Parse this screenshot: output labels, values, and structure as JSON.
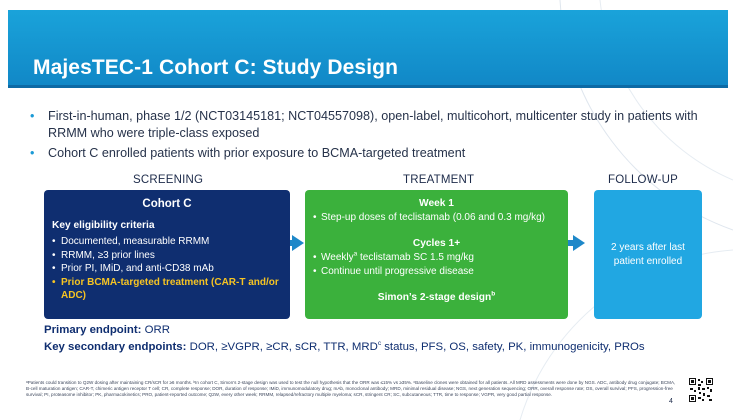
{
  "slide": {
    "title": "MajesTEC-1 Cohort C: Study Design",
    "page_number": "4",
    "colors": {
      "title_bar": "#1188c7",
      "screening": "#0f2e70",
      "treatment": "#3bb13c",
      "follow_up": "#21a7e2",
      "highlight": "#f6c423"
    }
  },
  "bullets": [
    "First-in-human, phase 1/2 (NCT03145181; NCT04557098), open-label, multicohort, multicenter study in patients with RRMM who were triple-class exposed",
    "Cohort C enrolled patients with prior exposure to BCMA-targeted treatment"
  ],
  "phases": {
    "screening": "SCREENING",
    "treatment": "TREATMENT",
    "follow_up": "FOLLOW-UP"
  },
  "screening_box": {
    "heading": "Cohort C",
    "subheading": "Key eligibility criteria",
    "items": [
      "Documented, measurable RRMM",
      "RRMM, ≥3 prior lines",
      "Prior PI, IMiD, and anti-CD38 mAb"
    ],
    "highlight_item": "Prior BCMA-targeted treatment (CAR-T and/or ADC)"
  },
  "treatment_box": {
    "week_heading": "Week 1",
    "week_item": "Step-up doses of teclistamab (0.06 and 0.3 mg/kg)",
    "cycles_heading": "Cycles 1+",
    "weekly_prefix": "Weekly",
    "weekly_sup": "a",
    "weekly_rest": " teclistamab SC 1.5 mg/kg",
    "continue_item": "Continue until progressive disease",
    "design_label": "Simon’s 2-stage design",
    "design_sup": "b"
  },
  "follow_up_box": {
    "text": "2 years after last patient enrolled"
  },
  "endpoints": {
    "primary_label": "Primary endpoint:",
    "primary_value": "ORR",
    "secondary_label": "Key secondary endpoints:",
    "secondary_value_a": "DOR, ≥VGPR, ≥CR, sCR, TTR, MRD",
    "secondary_sup": "c",
    "secondary_value_b": " status, PFS, OS, safety, PK, immunogenicity, PROs"
  },
  "footnote": "ᵃPatients could transition to Q2W dosing after maintaining CR/sCR for ≥6 months. ᵇIn cohort C, Simon’s 2-stage design was used to test the null hypothesis that the ORR was ≤15% vs ≥35%. ᶜBaseline clones were obtained for all patients. All MRD assessments were done by NGS. ADC, antibody drug conjugate; BCMA, B-cell maturation antigen; CAR-T, chimeric antigen receptor T cell; CR, complete response; DOR, duration of response; IMiD, immunomodulatory drug; mAb, monoclonal antibody; MRD, minimal residual disease; NGS, next generation sequencing; ORR, overall response rate; OS, overall survival; PFS, progression-free survival; PI, proteasome inhibitor; PK, pharmacokinetics; PRO, patient-reported outcome; Q2W, every other week; RRMM, relapsed/refractory multiple myeloma; sCR, stringent CR; SC, subcutaneous; TTR, time to response; VGPR, very good partial response."
}
